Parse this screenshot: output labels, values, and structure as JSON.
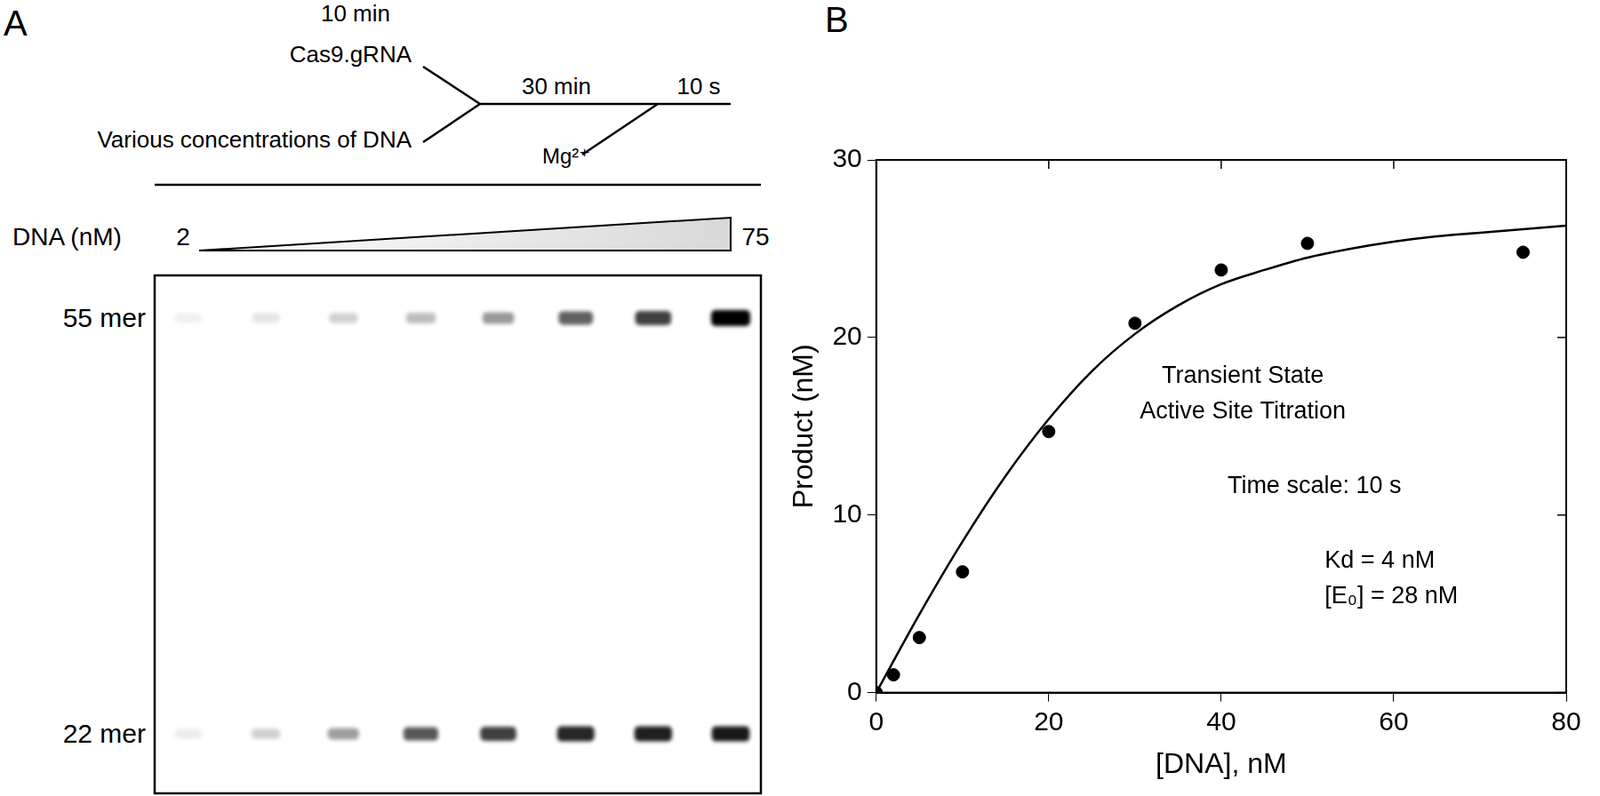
{
  "panel_a": {
    "label": "A",
    "schematic": {
      "preincubation_time": "10 min",
      "enzyme": "Cas9.gRNA",
      "substrate": "Various concentrations of DNA",
      "incubation_time": "30 min",
      "reaction_time": "10 s",
      "cofactor": "Mg²⁺"
    },
    "gel": {
      "gradient_label": "DNA (nM)",
      "gradient_start": "2",
      "gradient_end": "75",
      "lanes": 8,
      "bands": [
        {
          "label": "55 mer",
          "intensity": [
            0.06,
            0.1,
            0.18,
            0.26,
            0.4,
            0.62,
            0.75,
            1.0
          ]
        },
        {
          "label": "22 mer",
          "intensity": [
            0.08,
            0.18,
            0.38,
            0.65,
            0.75,
            0.85,
            0.88,
            0.9
          ]
        }
      ]
    }
  },
  "chart_data": {
    "label": "B",
    "type": "scatter",
    "x_label": "[DNA], nM",
    "y_label": "Product (nM)",
    "annotations": [
      "Transient State",
      "Active Site Titration",
      "Time scale: 10 s",
      "Kd = 4 nM",
      "[E₀] = 28 nM"
    ],
    "xlim": [
      0,
      80
    ],
    "xticks": [
      0,
      20,
      40,
      60,
      80
    ],
    "ylim": [
      0,
      30
    ],
    "yticks": [
      0,
      10,
      20,
      30
    ],
    "grid": false,
    "series": [
      {
        "type": "scatter",
        "marker": "circle",
        "color": "#000000",
        "x": [
          0,
          2,
          5,
          10,
          20,
          30,
          40,
          50,
          75
        ],
        "values": [
          0,
          1.0,
          3.1,
          6.8,
          14.7,
          20.8,
          23.8,
          25.3,
          24.8
        ]
      },
      {
        "type": "line",
        "line_style": "solid",
        "color": "#000000",
        "x": [
          0,
          5,
          10,
          15,
          20,
          25,
          30,
          35,
          40,
          45,
          50,
          55,
          60,
          65,
          70,
          75,
          80
        ],
        "values": [
          0,
          4.4,
          8.5,
          12.2,
          15.4,
          18.1,
          20.2,
          21.8,
          23.0,
          23.8,
          24.5,
          25.0,
          25.4,
          25.7,
          25.9,
          26.1,
          26.3
        ]
      }
    ]
  }
}
